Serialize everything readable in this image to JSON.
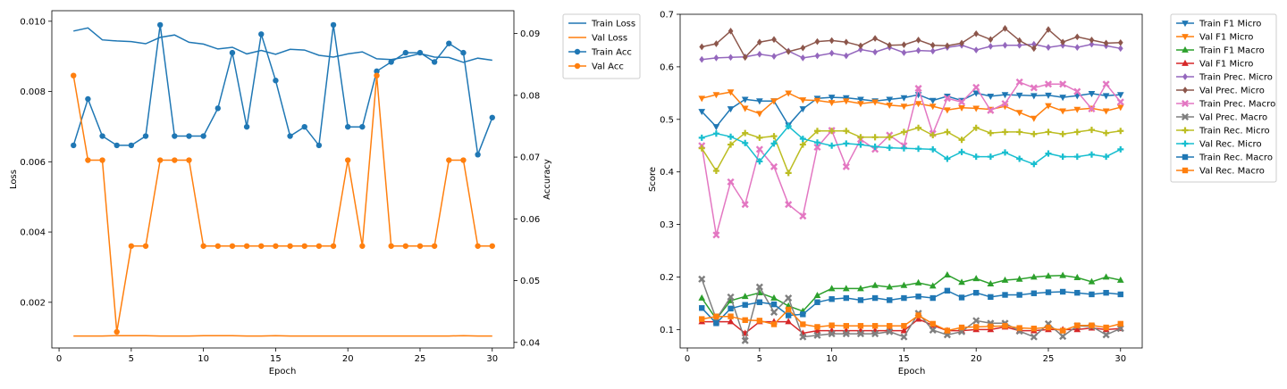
{
  "chart_data": [
    {
      "type": "line",
      "xlabel": "Epoch",
      "ylabel": "Loss",
      "y2label": "Accuracy",
      "xlim": [
        -0.5,
        31.5
      ],
      "ylim": [
        0.0007,
        0.0103
      ],
      "y2lim": [
        0.0391,
        0.0937
      ],
      "x_ticks": [
        0,
        5,
        10,
        15,
        20,
        25,
        30
      ],
      "y_ticks": [
        0.002,
        0.004,
        0.006,
        0.008,
        0.01
      ],
      "y_tick_labels": [
        "0.002",
        "0.004",
        "0.006",
        "0.008",
        "0.010"
      ],
      "y2_ticks": [
        0.04,
        0.05,
        0.06,
        0.07,
        0.08,
        0.09
      ],
      "y2_tick_labels": [
        "0.04",
        "0.05",
        "0.06",
        "0.07",
        "0.08",
        "0.09"
      ],
      "x": [
        1,
        2,
        3,
        4,
        5,
        6,
        7,
        8,
        9,
        10,
        11,
        12,
        13,
        14,
        15,
        16,
        17,
        18,
        19,
        20,
        21,
        22,
        23,
        24,
        25,
        26,
        27,
        28,
        29,
        30
      ],
      "legend_position": "outside-right-top",
      "grid": false,
      "series": [
        {
          "name": "Train Loss",
          "axis": "left",
          "color": "#1f77b4",
          "marker": "none",
          "values": [
            0.00972,
            0.00981,
            0.00947,
            0.00944,
            0.00942,
            0.00936,
            0.00954,
            0.00961,
            0.0094,
            0.00935,
            0.00921,
            0.00926,
            0.00907,
            0.00917,
            0.00906,
            0.0092,
            0.00918,
            0.00903,
            0.00898,
            0.00907,
            0.00913,
            0.00893,
            0.00891,
            0.00898,
            0.00908,
            0.00898,
            0.00897,
            0.00883,
            0.00895,
            0.00889
          ]
        },
        {
          "name": "Val Loss",
          "axis": "left",
          "color": "#ff7f0e",
          "marker": "none",
          "values": [
            0.00104,
            0.00104,
            0.00104,
            0.00105,
            0.00105,
            0.00105,
            0.00104,
            0.00104,
            0.00104,
            0.00105,
            0.00105,
            0.00105,
            0.00104,
            0.00104,
            0.00105,
            0.00104,
            0.00104,
            0.00104,
            0.00104,
            0.00104,
            0.00104,
            0.00104,
            0.00104,
            0.00104,
            0.00104,
            0.00104,
            0.00104,
            0.00105,
            0.00104,
            0.00104
          ]
        },
        {
          "name": "Train Acc",
          "axis": "right",
          "color": "#1f77b4",
          "marker": "circle",
          "values": [
            0.0719,
            0.0794,
            0.0734,
            0.0719,
            0.0719,
            0.0734,
            0.0914,
            0.0734,
            0.0734,
            0.0734,
            0.0779,
            0.0869,
            0.0749,
            0.0899,
            0.0824,
            0.0734,
            0.0749,
            0.0719,
            0.0914,
            0.0749,
            0.0749,
            0.0839,
            0.0854,
            0.0869,
            0.0869,
            0.0854,
            0.0884,
            0.0869,
            0.0704,
            0.0764
          ]
        },
        {
          "name": "Val Acc",
          "axis": "right",
          "color": "#ff7f0e",
          "marker": "circle",
          "values": [
            0.0832,
            0.0695,
            0.0695,
            0.0417,
            0.0556,
            0.0556,
            0.0695,
            0.0695,
            0.0695,
            0.0556,
            0.0556,
            0.0556,
            0.0556,
            0.0556,
            0.0556,
            0.0556,
            0.0556,
            0.0556,
            0.0556,
            0.0695,
            0.0556,
            0.0832,
            0.0556,
            0.0556,
            0.0556,
            0.0556,
            0.0695,
            0.0695,
            0.0556,
            0.0556
          ]
        }
      ]
    },
    {
      "type": "line",
      "xlabel": "Epoch",
      "ylabel": "Score",
      "xlim": [
        -0.5,
        31.5
      ],
      "ylim": [
        0.065,
        0.7
      ],
      "x_ticks": [
        0,
        5,
        10,
        15,
        20,
        25,
        30
      ],
      "y_ticks": [
        0.1,
        0.2,
        0.3,
        0.4,
        0.5,
        0.6,
        0.7
      ],
      "y_tick_labels": [
        "0.1",
        "0.2",
        "0.3",
        "0.4",
        "0.5",
        "0.6",
        "0.7"
      ],
      "x": [
        1,
        2,
        3,
        4,
        5,
        6,
        7,
        8,
        9,
        10,
        11,
        12,
        13,
        14,
        15,
        16,
        17,
        18,
        19,
        20,
        21,
        22,
        23,
        24,
        25,
        26,
        27,
        28,
        29,
        30
      ],
      "legend_position": "outside-right-top",
      "grid": false,
      "series": [
        {
          "name": "Train F1 Micro",
          "color": "#1f77b4",
          "marker": "triangle-down",
          "values": [
            0.515,
            0.486,
            0.52,
            0.538,
            0.535,
            0.535,
            0.489,
            0.52,
            0.54,
            0.542,
            0.541,
            0.538,
            0.535,
            0.538,
            0.541,
            0.547,
            0.536,
            0.544,
            0.536,
            0.55,
            0.544,
            0.547,
            0.546,
            0.545,
            0.546,
            0.542,
            0.545,
            0.549,
            0.545,
            0.547
          ]
        },
        {
          "name": "Val F1 Micro",
          "color": "#ff7f0e",
          "marker": "triangle-down",
          "values": [
            0.54,
            0.547,
            0.552,
            0.521,
            0.511,
            0.535,
            0.55,
            0.537,
            0.536,
            0.532,
            0.535,
            0.53,
            0.533,
            0.527,
            0.525,
            0.53,
            0.525,
            0.518,
            0.522,
            0.521,
            0.519,
            0.525,
            0.513,
            0.502,
            0.526,
            0.516,
            0.519,
            0.521,
            0.516,
            0.523
          ]
        },
        {
          "name": "Train F1 Macro",
          "color": "#2ca02c",
          "marker": "triangle-up",
          "values": [
            0.16,
            0.12,
            0.155,
            0.163,
            0.17,
            0.16,
            0.145,
            0.135,
            0.165,
            0.178,
            0.178,
            0.178,
            0.184,
            0.181,
            0.184,
            0.189,
            0.183,
            0.204,
            0.19,
            0.197,
            0.187,
            0.194,
            0.196,
            0.2,
            0.202,
            0.203,
            0.199,
            0.191,
            0.2,
            0.194
          ]
        },
        {
          "name": "Val F1 Micro",
          "color": "#d62728",
          "marker": "triangle-up",
          "values": [
            0.115,
            0.115,
            0.115,
            0.093,
            0.115,
            0.115,
            0.115,
            0.093,
            0.098,
            0.098,
            0.098,
            0.098,
            0.098,
            0.098,
            0.098,
            0.12,
            0.108,
            0.098,
            0.098,
            0.1,
            0.1,
            0.105,
            0.098,
            0.098,
            0.1,
            0.1,
            0.1,
            0.103,
            0.1,
            0.102
          ]
        },
        {
          "name": "Train Prec. Micro",
          "color": "#9467bd",
          "marker": "diamond",
          "values": [
            0.614,
            0.617,
            0.618,
            0.619,
            0.624,
            0.62,
            0.63,
            0.617,
            0.621,
            0.626,
            0.621,
            0.633,
            0.628,
            0.637,
            0.627,
            0.631,
            0.63,
            0.637,
            0.641,
            0.632,
            0.639,
            0.641,
            0.641,
            0.643,
            0.637,
            0.641,
            0.637,
            0.643,
            0.64,
            0.635
          ]
        },
        {
          "name": "Val Prec. Micro",
          "color": "#8c564b",
          "marker": "diamond",
          "values": [
            0.638,
            0.644,
            0.668,
            0.618,
            0.647,
            0.652,
            0.629,
            0.636,
            0.648,
            0.65,
            0.647,
            0.64,
            0.654,
            0.641,
            0.642,
            0.651,
            0.641,
            0.64,
            0.645,
            0.663,
            0.652,
            0.673,
            0.65,
            0.635,
            0.671,
            0.647,
            0.657,
            0.651,
            0.645,
            0.646
          ]
        },
        {
          "name": "Train Prec. Macro",
          "color": "#e377c2",
          "marker": "x",
          "values": [
            0.45,
            0.28,
            0.381,
            0.338,
            0.443,
            0.41,
            0.338,
            0.316,
            0.447,
            0.479,
            0.41,
            0.462,
            0.443,
            0.47,
            0.45,
            0.559,
            0.473,
            0.54,
            0.533,
            0.561,
            0.517,
            0.53,
            0.571,
            0.56,
            0.567,
            0.567,
            0.553,
            0.52,
            0.567,
            0.533
          ]
        },
        {
          "name": "Val Prec. Macro",
          "color": "#7f7f7f",
          "marker": "x",
          "values": [
            0.196,
            0.12,
            0.162,
            0.079,
            0.181,
            0.133,
            0.16,
            0.086,
            0.089,
            0.092,
            0.092,
            0.092,
            0.092,
            0.096,
            0.086,
            0.131,
            0.099,
            0.09,
            0.096,
            0.117,
            0.112,
            0.112,
            0.097,
            0.086,
            0.111,
            0.087,
            0.107,
            0.106,
            0.09,
            0.102
          ]
        },
        {
          "name": "Train Rec. Micro",
          "color": "#bcbd22",
          "marker": "plus",
          "values": [
            0.445,
            0.402,
            0.452,
            0.474,
            0.465,
            0.468,
            0.398,
            0.452,
            0.478,
            0.478,
            0.478,
            0.466,
            0.466,
            0.466,
            0.476,
            0.484,
            0.47,
            0.476,
            0.461,
            0.484,
            0.474,
            0.476,
            0.476,
            0.472,
            0.476,
            0.472,
            0.476,
            0.48,
            0.474,
            0.478
          ]
        },
        {
          "name": "Val Rec. Micro",
          "color": "#17becf",
          "marker": "plus",
          "values": [
            0.465,
            0.473,
            0.467,
            0.455,
            0.42,
            0.454,
            0.487,
            0.463,
            0.456,
            0.45,
            0.454,
            0.452,
            0.448,
            0.446,
            0.445,
            0.444,
            0.443,
            0.425,
            0.438,
            0.429,
            0.429,
            0.437,
            0.425,
            0.415,
            0.435,
            0.429,
            0.429,
            0.433,
            0.429,
            0.443
          ]
        },
        {
          "name": "Train Rec. Macro",
          "color": "#1f77b4",
          "marker": "square",
          "values": [
            0.141,
            0.112,
            0.14,
            0.147,
            0.152,
            0.148,
            0.127,
            0.129,
            0.152,
            0.158,
            0.16,
            0.156,
            0.16,
            0.156,
            0.16,
            0.163,
            0.16,
            0.174,
            0.161,
            0.17,
            0.162,
            0.166,
            0.166,
            0.169,
            0.171,
            0.172,
            0.17,
            0.167,
            0.17,
            0.167
          ]
        },
        {
          "name": "Val Rec. Macro",
          "color": "#ff7f0e",
          "marker": "square",
          "values": [
            0.12,
            0.125,
            0.125,
            0.118,
            0.117,
            0.11,
            0.138,
            0.11,
            0.105,
            0.108,
            0.107,
            0.107,
            0.107,
            0.107,
            0.107,
            0.127,
            0.111,
            0.098,
            0.104,
            0.105,
            0.106,
            0.107,
            0.103,
            0.102,
            0.104,
            0.098,
            0.108,
            0.108,
            0.104,
            0.111
          ]
        }
      ]
    }
  ]
}
